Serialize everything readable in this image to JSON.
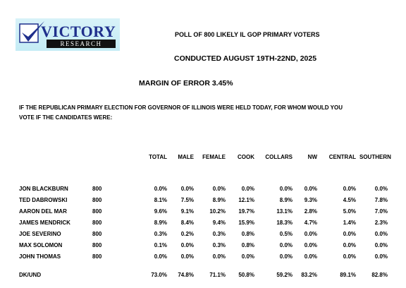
{
  "logo": {
    "brand": "VICTORY",
    "sub": "RESEARCH"
  },
  "header": {
    "line1": "POLL OF 800 LIKELY IL GOP PRIMARY VOTERS",
    "line2": "CONDUCTED AUGUST 19TH-22ND, 2025",
    "line3": "MARGIN OF ERROR 3.45%"
  },
  "question": "IF THE REPUBLICAN PRIMARY ELECTION FOR GOVERNOR OF ILLINOIS WERE HELD TODAY, FOR WHOM WOULD YOU VOTE IF THE CANDIDATES WERE:",
  "columns": [
    "TOTAL",
    "MALE",
    "FEMALE",
    "COOK",
    "COLLARS",
    "NW",
    "CENTRAL",
    "SOUTHERN"
  ],
  "rows": [
    {
      "name": "JON BLACKBURN",
      "n": "800",
      "values": [
        "0.0%",
        "0.0%",
        "0.0%",
        "0.0%",
        "0.0%",
        "0.0%",
        "0.0%",
        "0.0%"
      ]
    },
    {
      "name": "TED DABROWSKI",
      "n": "800",
      "values": [
        "8.1%",
        "7.5%",
        "8.9%",
        "12.1%",
        "8.9%",
        "9.3%",
        "4.5%",
        "7.8%"
      ]
    },
    {
      "name": "AARON DEL MAR",
      "n": "800",
      "values": [
        "9.6%",
        "9.1%",
        "10.2%",
        "19.7%",
        "13.1%",
        "2.8%",
        "5.0%",
        "7.0%"
      ]
    },
    {
      "name": "JAMES MENDRICK",
      "n": "800",
      "values": [
        "8.9%",
        "8.4%",
        "9.4%",
        "15.9%",
        "18.3%",
        "4.7%",
        "1.4%",
        "2.3%"
      ]
    },
    {
      "name": "JOE SEVERINO",
      "n": "800",
      "values": [
        "0.3%",
        "0.2%",
        "0.3%",
        "0.8%",
        "0.5%",
        "0.0%",
        "0.0%",
        "0.0%"
      ]
    },
    {
      "name": "MAX SOLOMON",
      "n": "800",
      "values": [
        "0.1%",
        "0.0%",
        "0.3%",
        "0.8%",
        "0.0%",
        "0.0%",
        "0.0%",
        "0.0%"
      ]
    },
    {
      "name": "JOHN THOMAS",
      "n": "800",
      "values": [
        "0.0%",
        "0.0%",
        "0.0%",
        "0.0%",
        "0.0%",
        "0.0%",
        "0.0%",
        "0.0%"
      ]
    }
  ],
  "dk_row": {
    "name": "DK/UND",
    "values": [
      "73.0%",
      "74.8%",
      "71.1%",
      "50.8%",
      "59.2%",
      "83.2%",
      "89.1%",
      "82.8%"
    ]
  }
}
